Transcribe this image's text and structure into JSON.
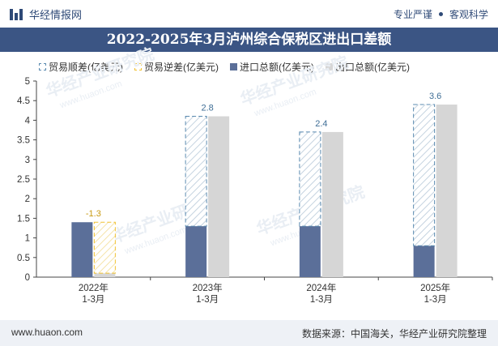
{
  "header": {
    "brand": "华经情报网",
    "tag1": "专业严谨",
    "tag2": "客观科学"
  },
  "colors": {
    "import": "#5b6f99",
    "export": "#d6d6d6",
    "surplus": "#5b8bb0",
    "deficit": "#f1c232",
    "title_bg": "#3b5584"
  },
  "watermark": "华经产业研究院",
  "watermark_url": "www.huaon.com",
  "chart_data": {
    "type": "bar",
    "title": "2022-2025年3月泸州综合保税区进出口差额",
    "categories": [
      [
        "2022年",
        "1-3月"
      ],
      [
        "2023年",
        "1-3月"
      ],
      [
        "2024年",
        "1-3月"
      ],
      [
        "2025年",
        "1-3月"
      ]
    ],
    "legend": [
      "贸易顺差(亿美元)",
      "贸易逆差(亿美元)",
      "进口总额(亿美元)",
      "出口总额(亿美元)"
    ],
    "series": [
      {
        "name": "进口总额(亿美元)",
        "values": [
          1.4,
          1.3,
          1.3,
          0.8
        ]
      },
      {
        "name": "出口总额(亿美元)",
        "values": [
          0.1,
          4.1,
          3.7,
          4.4
        ]
      }
    ],
    "balance": [
      -1.3,
      2.8,
      2.4,
      3.6
    ],
    "balance_labels": [
      "-1.3",
      "2.8",
      "2.4",
      "3.6"
    ],
    "ylim": [
      0,
      5
    ],
    "yticks": [
      "0",
      "0.5",
      "1",
      "1.5",
      "2",
      "2.5",
      "3",
      "3.5",
      "4",
      "4.5",
      "5"
    ],
    "xlabel": "",
    "ylabel": ""
  },
  "footer": {
    "url": "www.huaon.com",
    "source": "数据来源：中国海关，华经产业研究院整理"
  }
}
